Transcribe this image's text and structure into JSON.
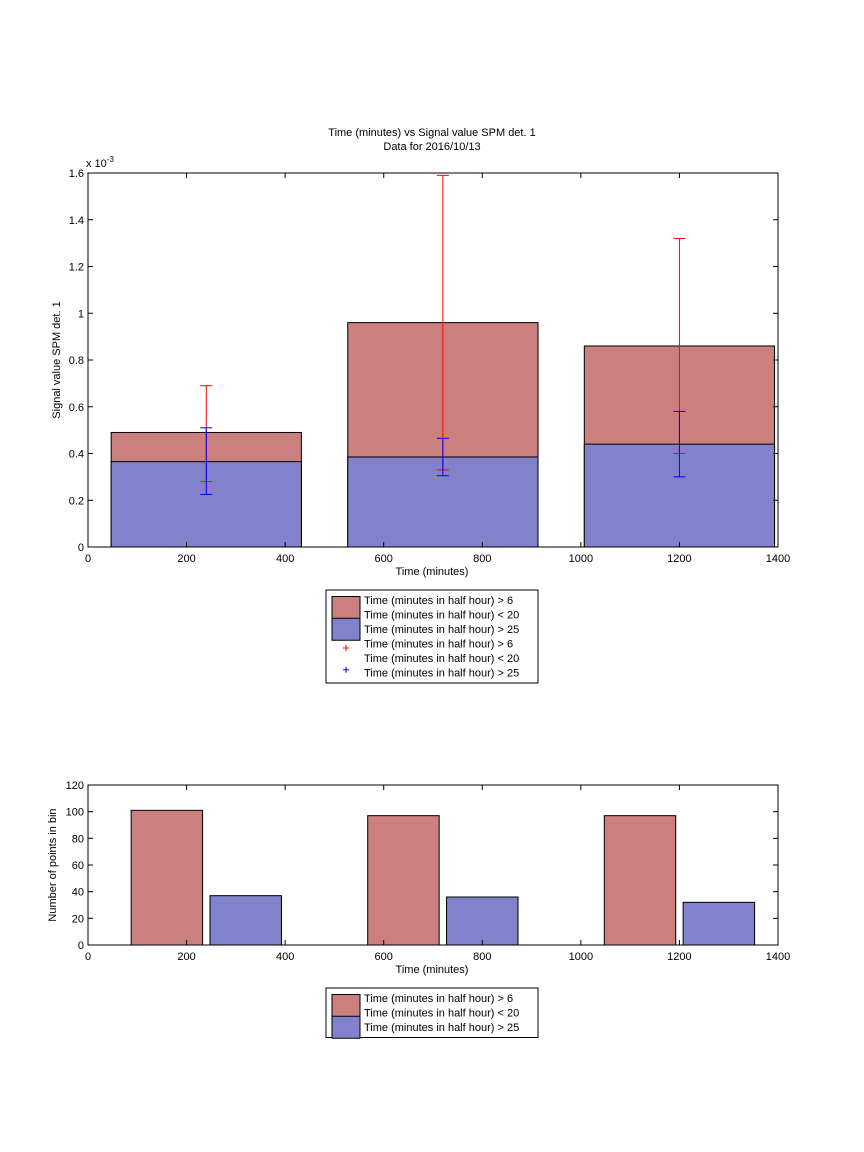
{
  "chart_data": [
    {
      "type": "bar",
      "title": "Time (minutes) vs Signal value SPM det. 1",
      "subtitle": "Data for 2016/10/13",
      "xlabel": "Time (minutes)",
      "ylabel": "Signal value SPM det. 1",
      "y_exponent_label": "x 10",
      "y_exponent_power": "-3",
      "xlim": [
        0,
        1400
      ],
      "ylim": [
        0,
        1.6
      ],
      "xticks": [
        0,
        200,
        400,
        600,
        800,
        1000,
        1200,
        1400
      ],
      "yticks": [
        0,
        0.2,
        0.4,
        0.6,
        0.8,
        1,
        1.2,
        1.4,
        1.6
      ],
      "x": [
        240,
        720,
        1200
      ],
      "bar_width_minutes": 386,
      "series": [
        {
          "name": "Time (minutes in half hour) > 6\nTime (minutes in half hour) < 20",
          "color": "#cb7f7f",
          "values": [
            0.49,
            0.96,
            0.86
          ],
          "errorbar": {
            "color": "#ff0000",
            "center": [
              0.49,
              0.96,
              0.86
            ],
            "lower": [
              0.28,
              0.33,
              0.4
            ],
            "upper": [
              0.69,
              1.59,
              1.32
            ]
          }
        },
        {
          "name": "Time (minutes in half hour) > 25",
          "color": "#8181cc",
          "values": [
            0.365,
            0.385,
            0.44
          ],
          "errorbar": {
            "color": "#0000ff",
            "center": [
              0.365,
              0.385,
              0.44
            ],
            "lower": [
              0.225,
              0.305,
              0.3
            ],
            "upper": [
              0.51,
              0.465,
              0.58
            ]
          }
        }
      ],
      "legend": {
        "placement": "below",
        "entries": [
          {
            "kind": "patch",
            "color": "#cb7f7f",
            "lines": [
              "Time (minutes in half hour) > 6",
              "Time (minutes in half hour) < 20"
            ]
          },
          {
            "kind": "patch",
            "color": "#8181cc",
            "lines": [
              "Time (minutes in half hour) > 25"
            ]
          },
          {
            "kind": "marker",
            "color": "#ff0000",
            "lines": [
              "Time (minutes in half hour) > 6",
              "Time (minutes in half hour) < 20"
            ]
          },
          {
            "kind": "marker",
            "color": "#0000ff",
            "lines": [
              "Time (minutes in half hour) > 25"
            ]
          }
        ]
      }
    },
    {
      "type": "bar",
      "xlabel": "Time (minutes)",
      "ylabel": "Number of points in bin",
      "xlim": [
        0,
        1400
      ],
      "ylim": [
        0,
        120
      ],
      "xticks": [
        0,
        200,
        400,
        600,
        800,
        1000,
        1200,
        1400
      ],
      "yticks": [
        0,
        20,
        40,
        60,
        80,
        100,
        120
      ],
      "bar_width_minutes": 145,
      "series": [
        {
          "name": "Time (minutes in half hour) > 6\nTime (minutes in half hour) < 20",
          "color": "#cb7f7f",
          "x": [
            160,
            640,
            1120
          ],
          "values": [
            101,
            97,
            97
          ]
        },
        {
          "name": "Time (minutes in half hour) > 25",
          "color": "#8181cc",
          "x": [
            320,
            800,
            1280
          ],
          "values": [
            37,
            36,
            32
          ]
        }
      ],
      "legend": {
        "placement": "below",
        "entries": [
          {
            "kind": "patch",
            "color": "#cb7f7f",
            "lines": [
              "Time (minutes in half hour) > 6",
              "Time (minutes in half hour) < 20"
            ]
          },
          {
            "kind": "patch",
            "color": "#8181cc",
            "lines": [
              "Time (minutes in half hour) > 25"
            ]
          }
        ]
      }
    }
  ]
}
